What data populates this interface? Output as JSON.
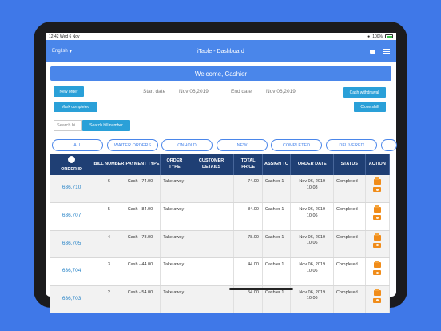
{
  "status_bar": {
    "time": "12:42",
    "date": "Wed 6 Nov",
    "battery": "100%"
  },
  "navbar": {
    "language": "English",
    "title": "iTable - Dashboard",
    "icons": [
      "chevron-down-icon",
      "folder-icon",
      "menu-icon"
    ]
  },
  "welcome": "Welcome, Cashier",
  "controls": {
    "new_order": "New order",
    "mark_completed": "Mark completed",
    "start_date_label": "Start date",
    "start_date_value": "Nov 06,2019",
    "end_date_label": "End date",
    "end_date_value": "Nov 06,2019",
    "cash_withdrawal": "Cash withdrawal",
    "close_shift": "Close shift",
    "search_placeholder": "Search bi",
    "search_button": "Search bill number"
  },
  "tabs": [
    "ALL",
    "WAITER ORDERS",
    "ONHOLD",
    "NEW",
    "COMPLETED",
    "DELIVERED"
  ],
  "table": {
    "headers": {
      "order_id": "ORDER ID",
      "bill_number": "BILL NUMBER",
      "payment_type": "PAYMENT TYPE",
      "order_type": "ORDER TYPE",
      "customer_details": "CUSTOMER DETAILS",
      "total_price": "TOTAL PRICE",
      "assign_to": "ASSIGN TO",
      "order_date": "ORDER DATE",
      "status": "STATUS",
      "action": "ACTION"
    },
    "rows": [
      {
        "order_id": "636,710",
        "bill": "6",
        "payment": "Cash - 74.00",
        "order_type": "Take away",
        "customer": "",
        "total": "74.00",
        "assign": "Cashier 1",
        "date": "Nov 06, 2019",
        "time": "10:08",
        "status": "Completed"
      },
      {
        "order_id": "636,707",
        "bill": "5",
        "payment": "Cash - 84.00",
        "order_type": "Take away",
        "customer": "",
        "total": "84.00",
        "assign": "Cashier 1",
        "date": "Nov 06, 2019",
        "time": "10:06",
        "status": "Completed"
      },
      {
        "order_id": "636,705",
        "bill": "4",
        "payment": "Cash - 78.00",
        "order_type": "Take away",
        "customer": "",
        "total": "78.00",
        "assign": "Cashier 1",
        "date": "Nov 06, 2019",
        "time": "10:06",
        "status": "Completed"
      },
      {
        "order_id": "636,704",
        "bill": "3",
        "payment": "Cash - 44.00",
        "order_type": "Take away",
        "customer": "",
        "total": "44.00",
        "assign": "Cashier 1",
        "date": "Nov 06, 2019",
        "time": "10:06",
        "status": "Completed"
      },
      {
        "order_id": "636,703",
        "bill": "2",
        "payment": "Cash - 54.00",
        "order_type": "Take away",
        "customer": "",
        "total": "54.00",
        "assign": "Cashier 1",
        "date": "Nov 06, 2019",
        "time": "10:06",
        "status": "Completed"
      }
    ]
  },
  "colors": {
    "background": "#3f78e8",
    "navbar": "#4a86ea",
    "header": "#1f3f74",
    "button": "#2aa0d8",
    "action_icon": "#f08c1a",
    "link": "#2a85c8"
  }
}
